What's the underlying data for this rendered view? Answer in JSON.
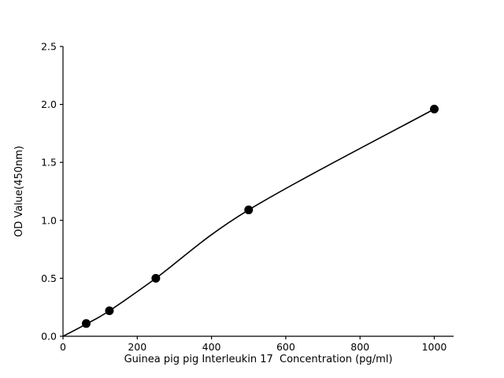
{
  "chart_data": {
    "type": "scatter",
    "title": "",
    "xlabel": "Guinea pig pig Interleukin 17  Concentration (pg/ml)",
    "ylabel": "OD Value(450nm)",
    "x": [
      62.5,
      125,
      250,
      500,
      1000
    ],
    "y": [
      0.11,
      0.22,
      0.5,
      1.09,
      1.96
    ],
    "fit_curve": {
      "x": [
        0,
        62.5,
        125,
        250,
        500,
        1000
      ],
      "y": [
        0,
        0.105,
        0.22,
        0.5,
        1.09,
        1.96
      ]
    },
    "xlim": [
      0,
      1052
    ],
    "ylim": [
      0,
      2.5
    ],
    "xticks": {
      "values": [
        0,
        200,
        400,
        600,
        800,
        1000
      ],
      "labels": [
        "0",
        "200",
        "400",
        "600",
        "800",
        "1000"
      ]
    },
    "yticks": {
      "values": [
        0,
        0.5,
        1,
        1.5,
        2,
        2.5
      ],
      "labels": [
        "0.0",
        "0.5",
        "1.0",
        "1.5",
        "2.0",
        "2.5"
      ]
    },
    "grid": false,
    "legend": null,
    "marker": "circle",
    "marker_radius_px": 5.5,
    "marker_color": "#000000",
    "line_color": "#000000",
    "axis_color": "#000000",
    "background": "#ffffff"
  }
}
